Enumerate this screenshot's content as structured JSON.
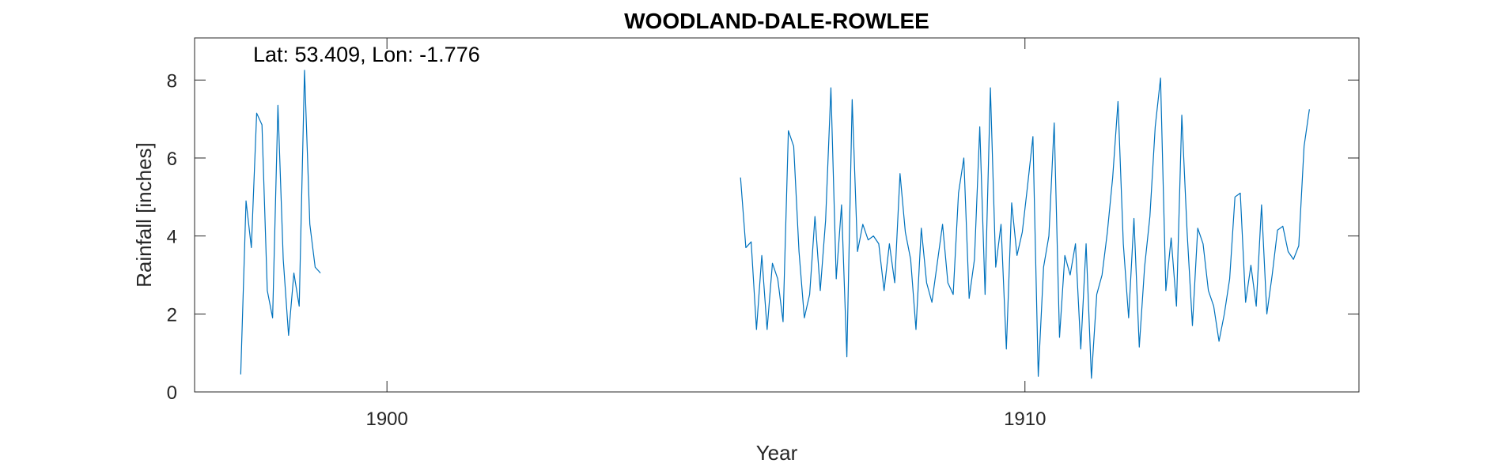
{
  "chart_data": {
    "type": "line",
    "title": "WOODLAND-DALE-ROWLEE",
    "xlabel": "Year",
    "ylabel": "Rainfall [inches]",
    "annotation": "Lat: 53.409, Lon: -1.776",
    "xlim": [
      1896.985,
      1915.235
    ],
    "ylim": [
      0,
      9.08
    ],
    "xticks": [
      1900,
      1910
    ],
    "xtick_labels": [
      "1900",
      "1910"
    ],
    "yticks": [
      0,
      2,
      4,
      6,
      8
    ],
    "ytick_labels": [
      "0",
      "2",
      "4",
      "6",
      "8"
    ],
    "grid": false,
    "series_color": "#0072BD",
    "series": [
      {
        "segments": [
          {
            "x_start": 1897.708,
            "step": 0.08333,
            "values": [
              0.45,
              4.9,
              3.7,
              7.15,
              6.85,
              2.6,
              1.9,
              7.35,
              3.4,
              1.45,
              3.05,
              2.2,
              8.25,
              4.3,
              3.2,
              3.05
            ]
          },
          {
            "x_start": 1905.542,
            "step": 0.08333,
            "values": [
              5.5,
              3.7,
              3.85,
              1.6,
              3.5,
              1.6,
              3.3,
              2.9,
              1.8,
              6.7,
              6.3,
              3.6,
              1.9,
              2.5,
              4.5,
              2.6,
              4.4,
              7.8,
              2.9,
              4.8,
              0.9,
              7.5,
              3.6,
              4.3,
              3.9,
              4.0,
              3.8,
              2.6,
              3.8,
              2.8,
              5.6,
              4.1,
              3.4,
              1.6,
              4.2,
              2.8,
              2.3,
              3.3,
              4.3,
              2.8,
              2.5,
              5.1,
              6.0,
              2.4,
              3.4,
              6.8,
              2.5,
              7.8,
              3.2,
              4.3,
              1.1,
              4.85,
              3.5,
              4.1,
              5.3,
              6.55,
              0.4,
              3.2,
              4.0,
              6.9,
              1.4,
              3.5,
              3.0,
              3.8,
              1.1,
              3.8,
              0.35,
              2.5,
              3.0,
              4.1,
              5.5,
              7.45,
              3.8,
              1.9,
              4.45,
              1.15,
              3.2,
              4.5,
              6.8,
              8.05,
              2.6,
              3.95,
              2.2,
              7.1,
              4.1,
              1.7,
              4.2,
              3.8,
              2.6,
              2.2,
              1.3,
              2.0,
              2.9,
              5.0,
              5.1,
              2.3,
              3.25,
              2.2,
              4.8,
              2.0,
              3.0,
              4.15,
              4.25,
              3.6,
              3.4,
              3.75,
              6.3,
              7.25
            ]
          }
        ]
      }
    ]
  }
}
